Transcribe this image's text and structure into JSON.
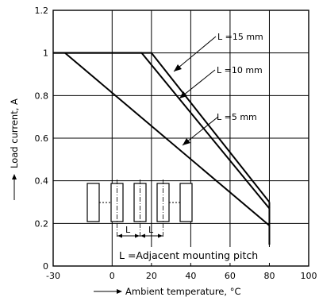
{
  "chart_data": {
    "type": "line",
    "xlabel": "Ambient temperature, °C",
    "ylabel": "Load current, A",
    "xlim": [
      -30,
      100
    ],
    "ylim": [
      0,
      1.2
    ],
    "x_ticks": [
      "-30",
      "0",
      "20",
      "40",
      "60",
      "80",
      "100"
    ],
    "y_ticks": [
      "0",
      "0.2",
      "0.4",
      "0.6",
      "0.8",
      "1",
      "1.2"
    ],
    "grid": true,
    "series": [
      {
        "name": "L =15 mm",
        "x": [
          -30,
          20,
          80
        ],
        "y": [
          1.0,
          1.0,
          0.3
        ]
      },
      {
        "name": "L =10 mm",
        "x": [
          -30,
          15,
          80
        ],
        "y": [
          1.0,
          1.0,
          0.27
        ]
      },
      {
        "name": "L =5 mm",
        "x": [
          -24,
          80
        ],
        "y": [
          1.0,
          0.19
        ]
      }
    ],
    "vertical_drop": {
      "x": 80,
      "y_from": 0.3,
      "y_to": 0.1
    },
    "annotations": {
      "note": "L =Adjacent mounting pitch",
      "pitch_symbol": "L"
    }
  }
}
